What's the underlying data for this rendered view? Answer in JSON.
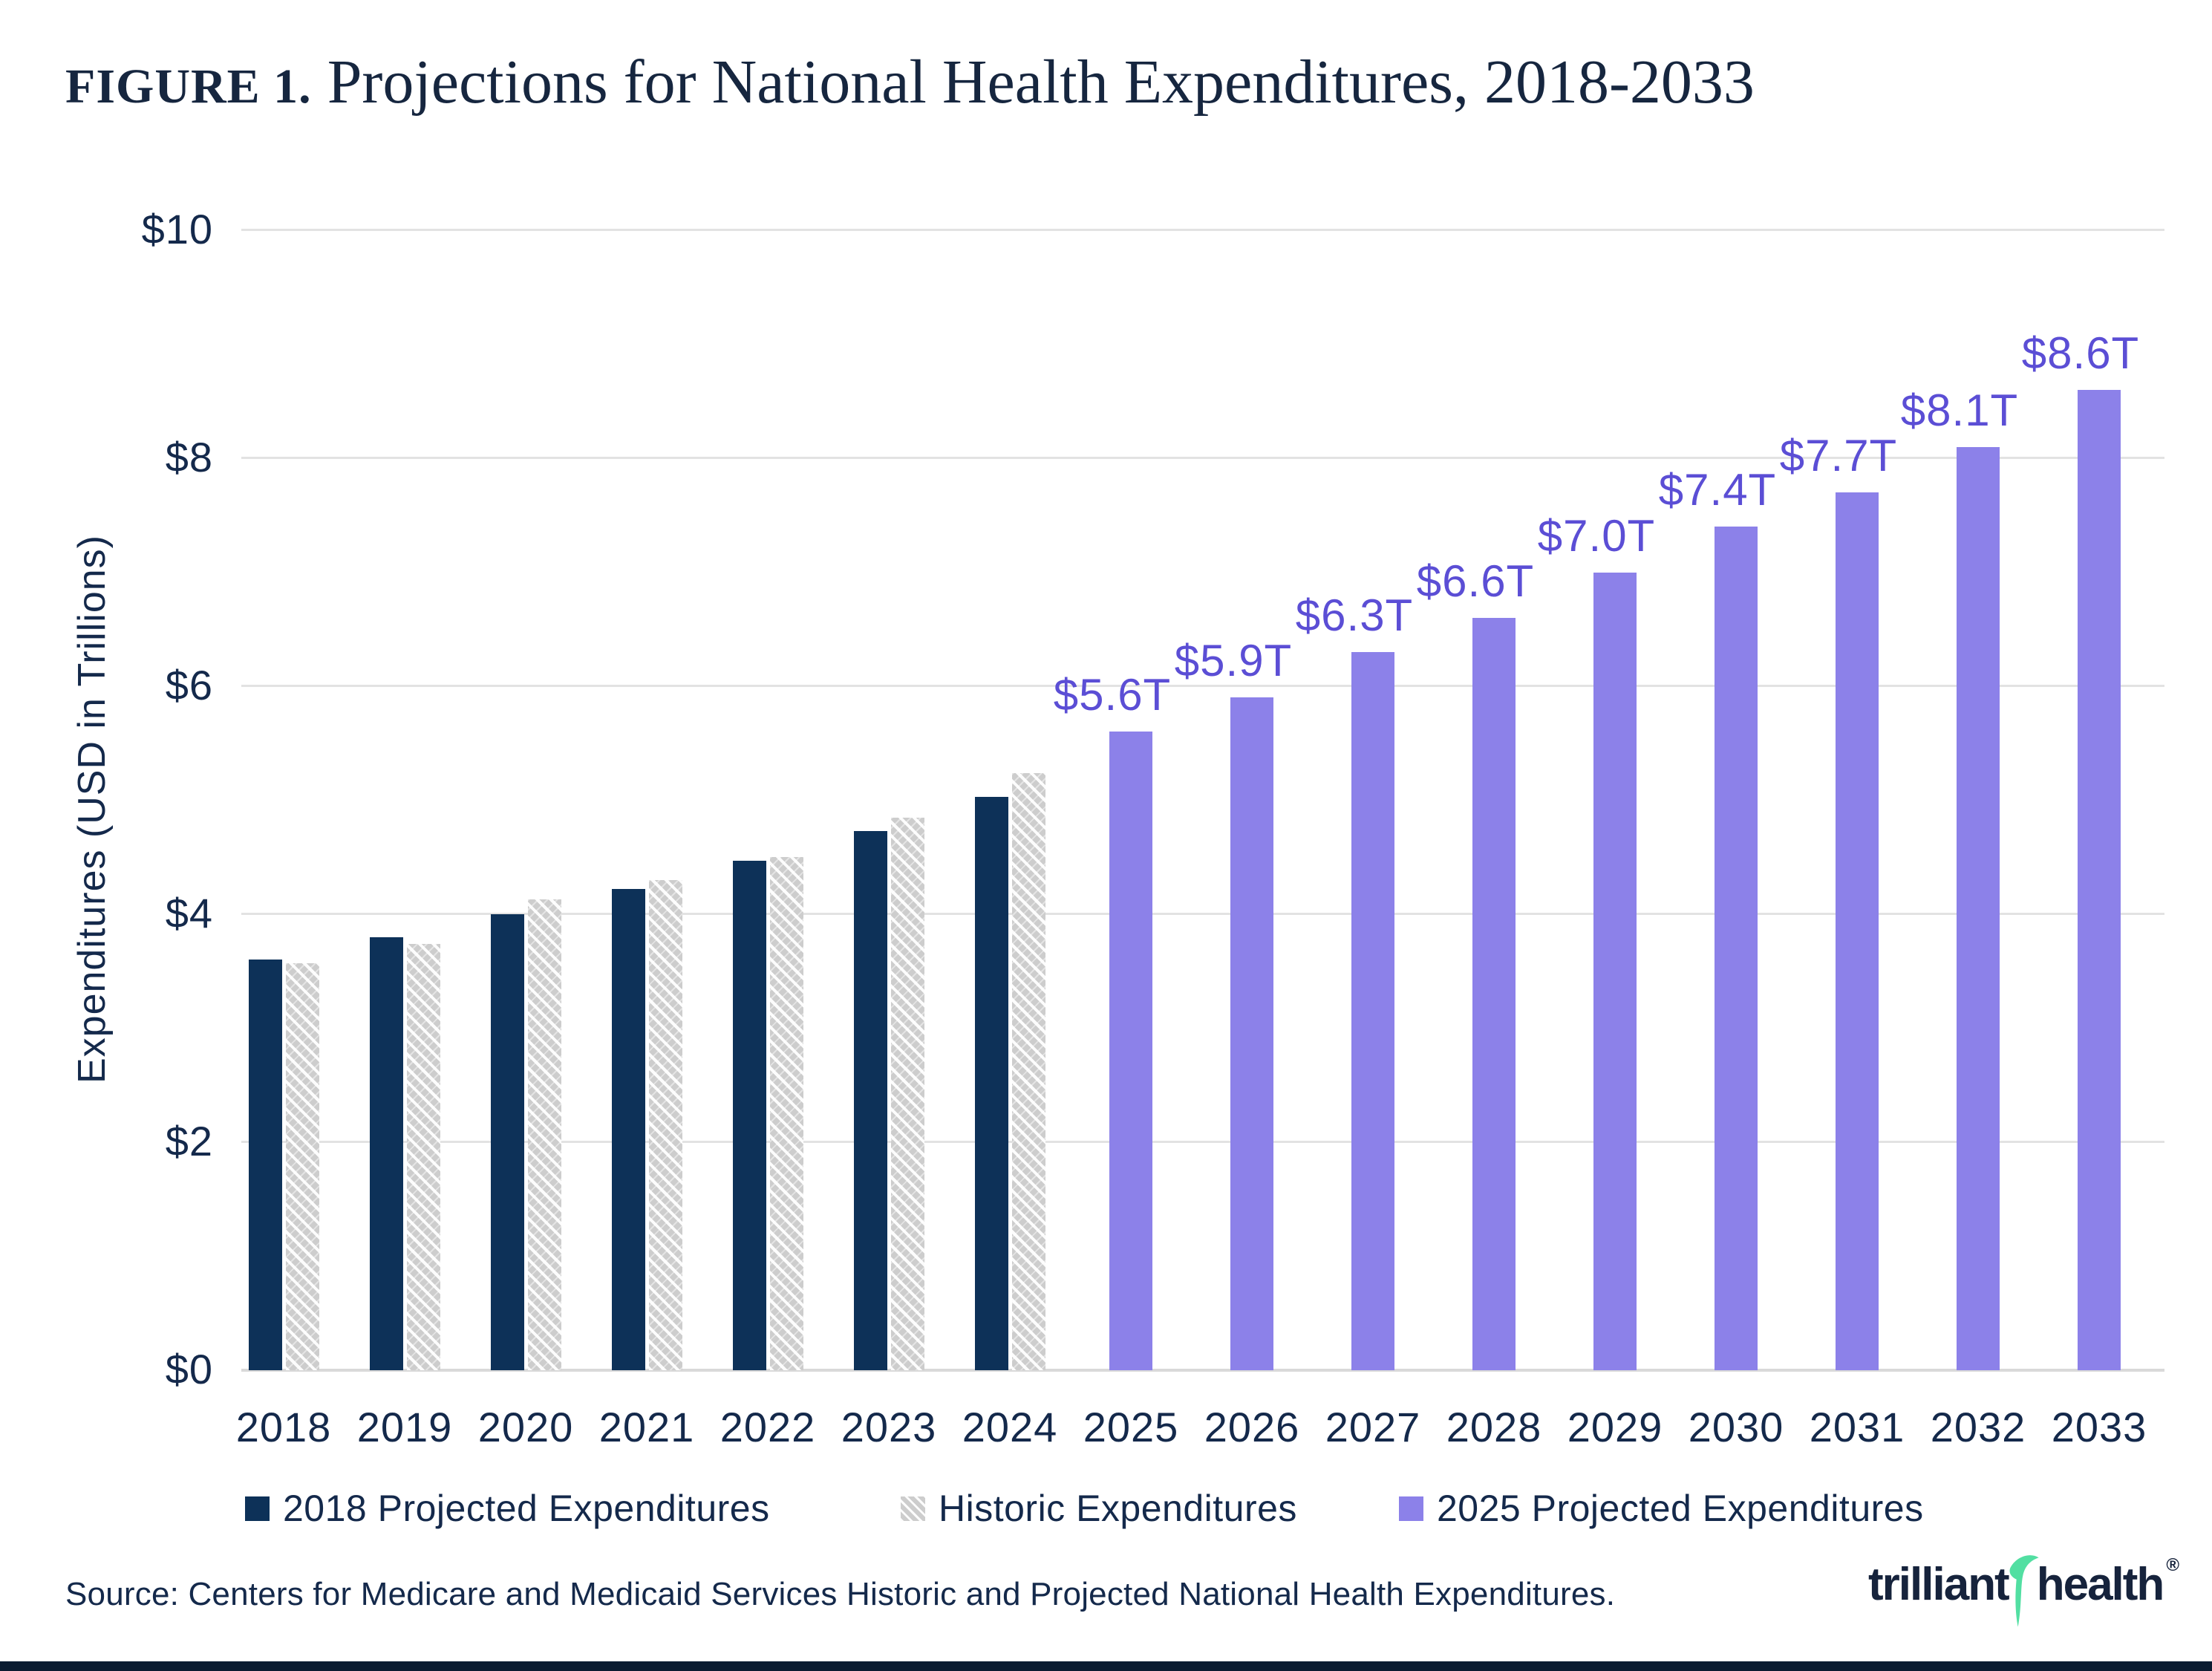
{
  "figure": {
    "label": "FIGURE 1.",
    "title": " Projections for National Health Expenditures, 2018-2033"
  },
  "chart_data": {
    "type": "bar",
    "title": "FIGURE 1. Projections for National Health Expenditures, 2018-2033",
    "categories": [
      "2018",
      "2019",
      "2020",
      "2021",
      "2022",
      "2023",
      "2024",
      "2025",
      "2026",
      "2027",
      "2028",
      "2029",
      "2030",
      "2031",
      "2032",
      "2033"
    ],
    "series": [
      {
        "name": "2018 Projected Expenditures",
        "color": "#0d3158",
        "style": "solid-navy",
        "values": [
          3.6,
          3.8,
          4.0,
          4.22,
          4.47,
          4.73,
          5.03,
          null,
          null,
          null,
          null,
          null,
          null,
          null,
          null,
          null
        ]
      },
      {
        "name": "Historic Expenditures",
        "color": "#cdcdcd",
        "style": "diagonal-hatch",
        "values": [
          3.57,
          3.74,
          4.13,
          4.3,
          4.5,
          4.85,
          5.24,
          null,
          null,
          null,
          null,
          null,
          null,
          null,
          null,
          null
        ]
      },
      {
        "name": "2025 Projected Expenditures",
        "color": "#8c81e9",
        "style": "solid-purple",
        "values": [
          null,
          null,
          null,
          null,
          null,
          null,
          null,
          5.6,
          5.9,
          6.3,
          6.6,
          7.0,
          7.4,
          7.7,
          8.1,
          8.6
        ],
        "data_labels": [
          null,
          null,
          null,
          null,
          null,
          null,
          null,
          "$5.6T",
          "$5.9T",
          "$6.3T",
          "$6.6T",
          "$7.0T",
          "$7.4T",
          "$7.7T",
          "$8.1T",
          "$8.6T"
        ]
      }
    ],
    "ylabel": "Expenditures (USD in Trillions)",
    "xlabel": "",
    "ylim": [
      0,
      10
    ],
    "yticks": [
      {
        "label": "$0",
        "value": 0
      },
      {
        "label": "$2",
        "value": 2
      },
      {
        "label": "$4",
        "value": 4
      },
      {
        "label": "$6",
        "value": 6
      },
      {
        "label": "$8",
        "value": 8
      },
      {
        "label": "$10",
        "value": 10
      }
    ],
    "grid": true,
    "legend_position": "bottom",
    "data_label_color": "#5b4ed5"
  },
  "legend": {
    "items": [
      {
        "label": "2018 Projected Expenditures",
        "swatch": "navy"
      },
      {
        "label": "Historic Expenditures",
        "swatch": "hatch"
      },
      {
        "label": "2025 Projected Expenditures",
        "swatch": "purple"
      }
    ]
  },
  "source": {
    "text": "Source: Centers for Medicare and Medicaid Services Historic and Projected National Health Expenditures."
  },
  "logo": {
    "part1": "trilliant",
    "part2": "health",
    "registered": "®",
    "accent_color": "#52dfa2",
    "text_color": "#16233c"
  },
  "colors": {
    "navy_bar": "#0d3158",
    "purple_bar": "#8c81e9",
    "purple_label": "#5b4ed5",
    "hatch_gray": "#cdcdcd",
    "gridline": "#e2e2e2",
    "text_navy": "#14294b",
    "footer_bar": "#0b1c31"
  }
}
